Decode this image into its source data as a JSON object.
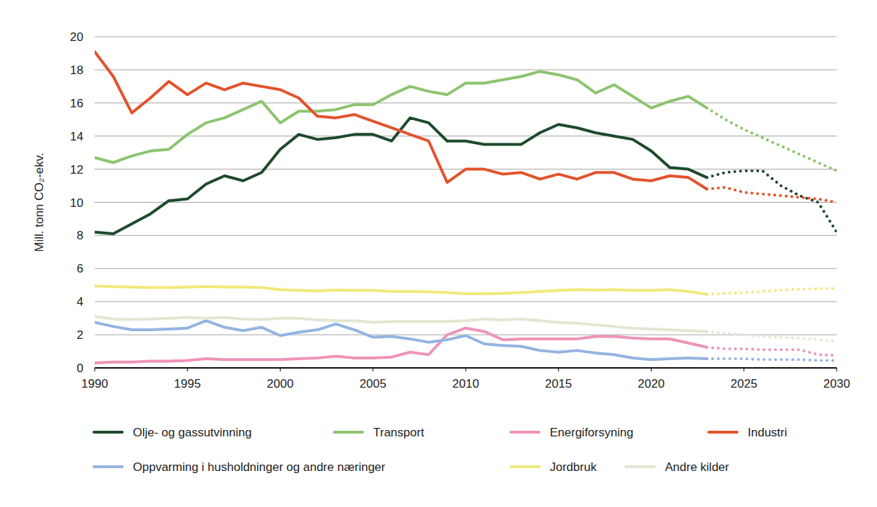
{
  "chart_data": {
    "type": "line",
    "y_label": "Mill. tonn CO₂-ekv.",
    "x": [
      1990,
      1991,
      1992,
      1993,
      1994,
      1995,
      1996,
      1997,
      1998,
      1999,
      2000,
      2001,
      2002,
      2003,
      2004,
      2005,
      2006,
      2007,
      2008,
      2009,
      2010,
      2011,
      2012,
      2013,
      2014,
      2015,
      2016,
      2017,
      2018,
      2019,
      2020,
      2021,
      2022,
      2023,
      2024,
      2025,
      2026,
      2027,
      2028,
      2029,
      2030
    ],
    "xlim": [
      1990,
      2030
    ],
    "xticks": [
      1990,
      1995,
      2000,
      2005,
      2010,
      2015,
      2020,
      2025,
      2030
    ],
    "ylim": [
      0,
      20
    ],
    "yticks": [
      0,
      2,
      4,
      6,
      8,
      10,
      12,
      14,
      16,
      18,
      20
    ],
    "grid": true,
    "legend": "bottom",
    "series": [
      {
        "name": "Olje- og gassutvinning",
        "color": "#1d4a2b",
        "line_style": "solid",
        "values": [
          8.2,
          8.1,
          8.7,
          9.3,
          10.1,
          10.2,
          11.1,
          11.6,
          11.3,
          11.8,
          13.2,
          14.1,
          13.8,
          13.9,
          14.1,
          14.1,
          13.7,
          15.1,
          14.8,
          13.7,
          13.7,
          13.5,
          13.5,
          13.5,
          14.2,
          14.7,
          14.5,
          14.2,
          14.0,
          13.8,
          13.1,
          12.1,
          12.0,
          11.5,
          null,
          null,
          null,
          null,
          null,
          null,
          null
        ]
      },
      {
        "name": "Transport",
        "color": "#8cc46e",
        "line_style": "solid",
        "values": [
          12.7,
          12.4,
          12.8,
          13.1,
          13.2,
          14.1,
          14.8,
          15.1,
          15.6,
          16.1,
          14.8,
          15.5,
          15.5,
          15.6,
          15.9,
          15.9,
          16.5,
          17.0,
          16.7,
          16.5,
          17.2,
          17.2,
          17.4,
          17.6,
          17.9,
          17.7,
          17.4,
          16.6,
          17.1,
          16.4,
          15.7,
          16.1,
          16.4,
          15.7,
          null,
          null,
          null,
          null,
          null,
          null,
          null
        ]
      },
      {
        "name": "Energiforsyning",
        "color": "#ee94b9",
        "line_style": "solid",
        "values": [
          0.3,
          0.35,
          0.35,
          0.4,
          0.4,
          0.45,
          0.55,
          0.5,
          0.5,
          0.5,
          0.5,
          0.55,
          0.6,
          0.7,
          0.6,
          0.6,
          0.65,
          0.95,
          0.8,
          2.0,
          2.4,
          2.2,
          1.7,
          1.75,
          1.75,
          1.75,
          1.75,
          1.9,
          1.9,
          1.8,
          1.75,
          1.75,
          1.5,
          1.25,
          null,
          null,
          null,
          null,
          null,
          null,
          null
        ]
      },
      {
        "name": "Industri",
        "color": "#e3522c",
        "line_style": "solid",
        "values": [
          19.1,
          17.6,
          15.4,
          16.3,
          17.3,
          16.5,
          17.2,
          16.8,
          17.2,
          17.0,
          16.8,
          16.3,
          15.2,
          15.1,
          15.3,
          14.9,
          14.5,
          14.1,
          13.7,
          11.2,
          12.0,
          12.0,
          11.7,
          11.8,
          11.4,
          11.7,
          11.4,
          11.8,
          11.8,
          11.4,
          11.3,
          11.6,
          11.5,
          10.8,
          null,
          null,
          null,
          null,
          null,
          null,
          null
        ]
      },
      {
        "name": "Oppvarming i husholdninger og andre næringer",
        "color": "#93b4e1",
        "line_style": "solid",
        "values": [
          2.75,
          2.5,
          2.3,
          2.3,
          2.35,
          2.4,
          2.85,
          2.45,
          2.25,
          2.45,
          1.95,
          2.15,
          2.3,
          2.65,
          2.3,
          1.85,
          1.9,
          1.75,
          1.55,
          1.7,
          1.95,
          1.45,
          1.35,
          1.3,
          1.05,
          0.95,
          1.05,
          0.9,
          0.8,
          0.6,
          0.5,
          0.55,
          0.6,
          0.55,
          null,
          null,
          null,
          null,
          null,
          null,
          null
        ]
      },
      {
        "name": "Jordbruk",
        "color": "#f1e97a",
        "line_style": "solid",
        "values": [
          4.95,
          4.9,
          4.88,
          4.85,
          4.85,
          4.88,
          4.92,
          4.88,
          4.88,
          4.85,
          4.72,
          4.68,
          4.65,
          4.7,
          4.68,
          4.68,
          4.62,
          4.62,
          4.6,
          4.55,
          4.48,
          4.48,
          4.5,
          4.55,
          4.62,
          4.68,
          4.72,
          4.7,
          4.72,
          4.68,
          4.68,
          4.72,
          4.62,
          4.45,
          null,
          null,
          null,
          null,
          null,
          null,
          null
        ]
      },
      {
        "name": "Andre kilder",
        "color": "#e2e7d2",
        "line_style": "solid",
        "values": [
          3.1,
          2.95,
          2.92,
          2.95,
          3.0,
          3.05,
          3.0,
          3.05,
          2.95,
          2.92,
          3.0,
          3.0,
          2.9,
          2.85,
          2.85,
          2.75,
          2.8,
          2.8,
          2.8,
          2.8,
          2.85,
          2.95,
          2.9,
          2.95,
          2.85,
          2.75,
          2.7,
          2.6,
          2.5,
          2.4,
          2.35,
          2.3,
          2.25,
          2.2,
          null,
          null,
          null,
          null,
          null,
          null,
          null
        ]
      },
      {
        "name": "Olje- og gassutvinning",
        "color": "#1d4a2b",
        "line_style": "dotted",
        "values": [
          null,
          null,
          null,
          null,
          null,
          null,
          null,
          null,
          null,
          null,
          null,
          null,
          null,
          null,
          null,
          null,
          null,
          null,
          null,
          null,
          null,
          null,
          null,
          null,
          null,
          null,
          null,
          null,
          null,
          null,
          null,
          null,
          null,
          11.5,
          11.8,
          11.9,
          11.9,
          11.0,
          10.4,
          10.0,
          8.2
        ]
      },
      {
        "name": "Transport",
        "color": "#8cc46e",
        "line_style": "dotted",
        "values": [
          null,
          null,
          null,
          null,
          null,
          null,
          null,
          null,
          null,
          null,
          null,
          null,
          null,
          null,
          null,
          null,
          null,
          null,
          null,
          null,
          null,
          null,
          null,
          null,
          null,
          null,
          null,
          null,
          null,
          null,
          null,
          null,
          null,
          15.7,
          15.0,
          14.4,
          13.9,
          13.4,
          12.9,
          12.4,
          11.9
        ]
      },
      {
        "name": "Energiforsyning",
        "color": "#ee94b9",
        "line_style": "dotted",
        "values": [
          null,
          null,
          null,
          null,
          null,
          null,
          null,
          null,
          null,
          null,
          null,
          null,
          null,
          null,
          null,
          null,
          null,
          null,
          null,
          null,
          null,
          null,
          null,
          null,
          null,
          null,
          null,
          null,
          null,
          null,
          null,
          null,
          null,
          1.25,
          1.15,
          1.15,
          1.1,
          1.1,
          1.1,
          0.8,
          0.75
        ]
      },
      {
        "name": "Industri",
        "color": "#e3522c",
        "line_style": "dotted",
        "values": [
          null,
          null,
          null,
          null,
          null,
          null,
          null,
          null,
          null,
          null,
          null,
          null,
          null,
          null,
          null,
          null,
          null,
          null,
          null,
          null,
          null,
          null,
          null,
          null,
          null,
          null,
          null,
          null,
          null,
          null,
          null,
          null,
          null,
          10.8,
          10.9,
          10.6,
          10.5,
          10.4,
          10.3,
          10.2,
          10.0
        ]
      },
      {
        "name": "Oppvarming i husholdninger og andre næringer",
        "color": "#93b4e1",
        "line_style": "dotted",
        "values": [
          null,
          null,
          null,
          null,
          null,
          null,
          null,
          null,
          null,
          null,
          null,
          null,
          null,
          null,
          null,
          null,
          null,
          null,
          null,
          null,
          null,
          null,
          null,
          null,
          null,
          null,
          null,
          null,
          null,
          null,
          null,
          null,
          null,
          0.55,
          0.55,
          0.55,
          0.5,
          0.5,
          0.5,
          0.45,
          0.45
        ]
      },
      {
        "name": "Jordbruk",
        "color": "#f1e97a",
        "line_style": "dotted",
        "values": [
          null,
          null,
          null,
          null,
          null,
          null,
          null,
          null,
          null,
          null,
          null,
          null,
          null,
          null,
          null,
          null,
          null,
          null,
          null,
          null,
          null,
          null,
          null,
          null,
          null,
          null,
          null,
          null,
          null,
          null,
          null,
          null,
          null,
          4.45,
          4.5,
          4.55,
          4.62,
          4.7,
          4.75,
          4.78,
          4.8
        ]
      },
      {
        "name": "Andre kilder",
        "color": "#e2e7d2",
        "line_style": "dotted",
        "values": [
          null,
          null,
          null,
          null,
          null,
          null,
          null,
          null,
          null,
          null,
          null,
          null,
          null,
          null,
          null,
          null,
          null,
          null,
          null,
          null,
          null,
          null,
          null,
          null,
          null,
          null,
          null,
          null,
          null,
          null,
          null,
          null,
          null,
          2.2,
          2.1,
          2.0,
          1.9,
          1.85,
          1.8,
          1.7,
          1.6
        ]
      }
    ]
  }
}
